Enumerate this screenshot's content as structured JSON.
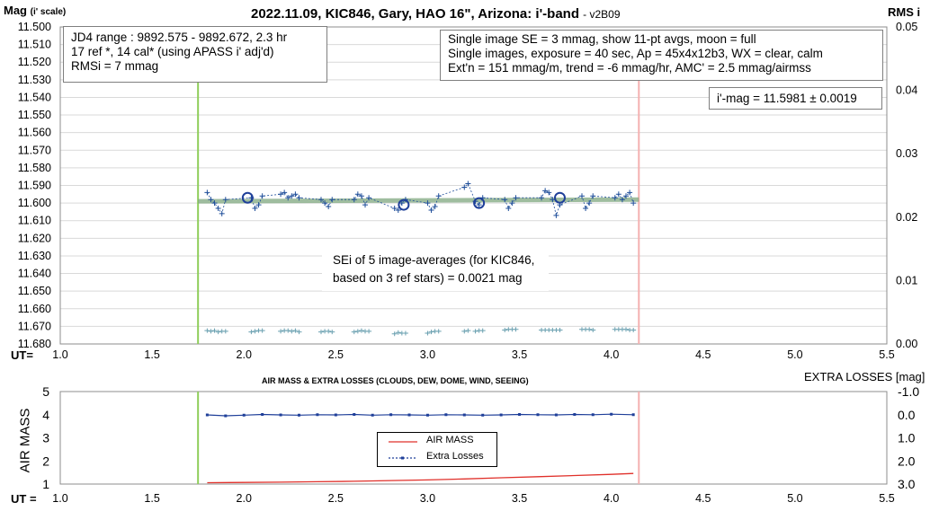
{
  "chart_data": [
    {
      "type": "scatter",
      "title": "2022.11.09, KIC846, Gary, HAO 16\", Arizona: i'-band",
      "version": "- v2B09",
      "ylabel": "Mag",
      "ylabel_sub": "(i' scale)",
      "ylabel_right": "RMS i",
      "xlabel": "UT=",
      "xlim": [
        1.0,
        5.5
      ],
      "ylim": [
        11.68,
        11.5
      ],
      "ylim_right": [
        0.0,
        0.05
      ],
      "x_ticks": [
        "1.0",
        "1.5",
        "2.0",
        "2.5",
        "3.0",
        "3.5",
        "4.0",
        "4.5",
        "5.0",
        "5.5"
      ],
      "y_ticks": [
        "11.500",
        "11.510",
        "11.520",
        "11.530",
        "11.540",
        "11.550",
        "11.560",
        "11.570",
        "11.580",
        "11.590",
        "11.600",
        "11.610",
        "11.620",
        "11.630",
        "11.640",
        "11.650",
        "11.660",
        "11.670",
        "11.680"
      ],
      "y_ticks_right": [
        "0.05",
        "0.04",
        "0.03",
        "0.02",
        "0.01",
        "0.00"
      ],
      "grid": true,
      "start_marker_ut": 1.75,
      "end_marker_ut": 4.15,
      "fit_line": {
        "x": [
          1.75,
          4.15
        ],
        "y": [
          11.599,
          11.598
        ]
      },
      "series": [
        {
          "points": [
            [
              1.8,
              11.594
            ],
            [
              1.82,
              11.598
            ],
            [
              1.84,
              11.6
            ],
            [
              1.86,
              11.603
            ],
            [
              1.88,
              11.606
            ],
            [
              1.9,
              11.598
            ],
            [
              2.04,
              11.597
            ],
            [
              2.06,
              11.603
            ],
            [
              2.08,
              11.601
            ],
            [
              2.1,
              11.596
            ],
            [
              2.2,
              11.595
            ],
            [
              2.22,
              11.594
            ],
            [
              2.24,
              11.597
            ],
            [
              2.26,
              11.596
            ],
            [
              2.28,
              11.595
            ],
            [
              2.3,
              11.597
            ],
            [
              2.42,
              11.598
            ],
            [
              2.44,
              11.6
            ],
            [
              2.46,
              11.602
            ],
            [
              2.48,
              11.598
            ],
            [
              2.6,
              11.598
            ],
            [
              2.62,
              11.595
            ],
            [
              2.64,
              11.596
            ],
            [
              2.66,
              11.601
            ],
            [
              2.68,
              11.597
            ],
            [
              2.82,
              11.603
            ],
            [
              2.84,
              11.604
            ],
            [
              2.86,
              11.6
            ],
            [
              2.88,
              11.598
            ],
            [
              3.0,
              11.6
            ],
            [
              3.02,
              11.604
            ],
            [
              3.04,
              11.602
            ],
            [
              3.06,
              11.596
            ],
            [
              3.2,
              11.591
            ],
            [
              3.22,
              11.589
            ],
            [
              3.26,
              11.599
            ],
            [
              3.28,
              11.601
            ],
            [
              3.3,
              11.597
            ],
            [
              3.42,
              11.598
            ],
            [
              3.44,
              11.603
            ],
            [
              3.46,
              11.6
            ],
            [
              3.48,
              11.597
            ],
            [
              3.62,
              11.597
            ],
            [
              3.64,
              11.593
            ],
            [
              3.66,
              11.594
            ],
            [
              3.68,
              11.598
            ],
            [
              3.7,
              11.607
            ],
            [
              3.72,
              11.601
            ],
            [
              3.84,
              11.596
            ],
            [
              3.86,
              11.603
            ],
            [
              3.88,
              11.6
            ],
            [
              3.9,
              11.596
            ],
            [
              4.02,
              11.597
            ],
            [
              4.04,
              11.595
            ],
            [
              4.06,
              11.598
            ],
            [
              4.08,
              11.596
            ],
            [
              4.1,
              11.594
            ],
            [
              4.12,
              11.6
            ]
          ]
        },
        {
          "points": [
            [
              2.02,
              11.597
            ],
            [
              2.87,
              11.601
            ],
            [
              3.28,
              11.6
            ],
            [
              3.72,
              11.597
            ]
          ]
        },
        {
          "axis": "right",
          "points": [
            [
              1.8,
              0.0021
            ],
            [
              1.82,
              0.002
            ],
            [
              1.84,
              0.0021
            ],
            [
              1.86,
              0.0019
            ],
            [
              1.88,
              0.002
            ],
            [
              1.9,
              0.002
            ],
            [
              2.04,
              0.0019
            ],
            [
              2.06,
              0.002
            ],
            [
              2.08,
              0.0021
            ],
            [
              2.1,
              0.0021
            ],
            [
              2.2,
              0.002
            ],
            [
              2.22,
              0.0021
            ],
            [
              2.24,
              0.0021
            ],
            [
              2.26,
              0.002
            ],
            [
              2.28,
              0.0021
            ],
            [
              2.3,
              0.0019
            ],
            [
              2.42,
              0.0019
            ],
            [
              2.44,
              0.002
            ],
            [
              2.46,
              0.002
            ],
            [
              2.48,
              0.0019
            ],
            [
              2.6,
              0.0019
            ],
            [
              2.62,
              0.002
            ],
            [
              2.64,
              0.0021
            ],
            [
              2.66,
              0.002
            ],
            [
              2.68,
              0.002
            ],
            [
              2.82,
              0.0016
            ],
            [
              2.84,
              0.0018
            ],
            [
              2.86,
              0.0017
            ],
            [
              2.88,
              0.0017
            ],
            [
              3.0,
              0.0017
            ],
            [
              3.02,
              0.0019
            ],
            [
              3.04,
              0.002
            ],
            [
              3.06,
              0.002
            ],
            [
              3.2,
              0.002
            ],
            [
              3.22,
              0.0021
            ],
            [
              3.26,
              0.002
            ],
            [
              3.28,
              0.0021
            ],
            [
              3.3,
              0.0021
            ],
            [
              3.42,
              0.0022
            ],
            [
              3.44,
              0.0023
            ],
            [
              3.46,
              0.0023
            ],
            [
              3.48,
              0.0023
            ],
            [
              3.62,
              0.0022
            ],
            [
              3.64,
              0.0022
            ],
            [
              3.66,
              0.0022
            ],
            [
              3.68,
              0.0022
            ],
            [
              3.7,
              0.0022
            ],
            [
              3.72,
              0.0022
            ],
            [
              3.84,
              0.0023
            ],
            [
              3.86,
              0.0023
            ],
            [
              3.88,
              0.0023
            ],
            [
              3.9,
              0.0022
            ],
            [
              4.02,
              0.0023
            ],
            [
              4.04,
              0.0023
            ],
            [
              4.06,
              0.0023
            ],
            [
              4.08,
              0.0023
            ],
            [
              4.1,
              0.0022
            ],
            [
              4.12,
              0.0022
            ]
          ]
        }
      ],
      "annotations": {
        "box_left": [
          "JD4 range : 9892.575 - 9892.672, 2.3  hr",
          "17 ref *, 14 cal* (using APASS i' adj'd)",
          "RMSi = 7 mmag"
        ],
        "box_right": [
          "Single image SE = 3 mmag, show 11-pt avgs, moon = full",
          "Single images, exposure = 40 sec, Ap = 45x4x12b3, WX = clear, calm",
          "Ext'n = 151 mmag/m, trend = -6 mmag/hr, AMC' = 2.5 mmag/airmss"
        ],
        "box_mag": "i'-mag = 11.5981 ± 0.0019",
        "box_se": [
          "SEi of 5 image-averages (for KIC846,",
          "based on 3 ref stars) = 0.0021 mag"
        ]
      },
      "colors": {
        "points": "#1f4e9a",
        "avg_circles": "#1f3f99",
        "fit": "#7fa87f",
        "start": "#8fce5a",
        "end": "#f4b0b0",
        "rms": "#6aa0b0"
      }
    },
    {
      "type": "line",
      "title": "AIR MASS & EXTRA LOSSES (CLOUDS, DEW, DOME, WIND, SEEING)",
      "ylabel": "AIR MASS",
      "ylabel_right": "EXTRA LOSSES [mag]",
      "xlabel": "UT =",
      "xlim": [
        1.0,
        5.5
      ],
      "ylim": [
        1,
        5
      ],
      "ylim_right": [
        3.0,
        -1.0
      ],
      "x_ticks": [
        "1.0",
        "1.5",
        "2.0",
        "2.5",
        "3.0",
        "3.5",
        "4.0",
        "4.5",
        "5.0",
        "5.5"
      ],
      "y_ticks": [
        "1",
        "2",
        "3",
        "4",
        "5"
      ],
      "y_ticks_right": [
        "-1.0",
        "0.0",
        "1.0",
        "2.0",
        "3.0"
      ],
      "grid": false,
      "legend_position": "center",
      "series": [
        {
          "name": "AIR MASS",
          "x": [
            1.8,
            2.0,
            2.2,
            2.4,
            2.6,
            2.8,
            3.0,
            3.2,
            3.4,
            3.6,
            3.8,
            4.0,
            4.12
          ],
          "y": [
            1.06,
            1.07,
            1.08,
            1.1,
            1.12,
            1.15,
            1.18,
            1.22,
            1.27,
            1.32,
            1.37,
            1.42,
            1.46
          ]
        },
        {
          "name": "Extra Losses",
          "x": [
            1.8,
            1.9,
            2.0,
            2.1,
            2.2,
            2.3,
            2.4,
            2.5,
            2.6,
            2.7,
            2.8,
            2.9,
            3.0,
            3.1,
            3.2,
            3.3,
            3.4,
            3.5,
            3.6,
            3.7,
            3.8,
            3.9,
            4.0,
            4.12
          ],
          "y": [
            0.01,
            0.05,
            0.02,
            -0.01,
            0.01,
            0.02,
            0.0,
            0.01,
            -0.01,
            0.02,
            0.0,
            0.01,
            0.02,
            0.0,
            0.01,
            0.02,
            0.01,
            -0.01,
            0.0,
            0.01,
            -0.01,
            0.0,
            -0.02,
            0.0
          ],
          "axis": "right"
        }
      ]
    }
  ]
}
